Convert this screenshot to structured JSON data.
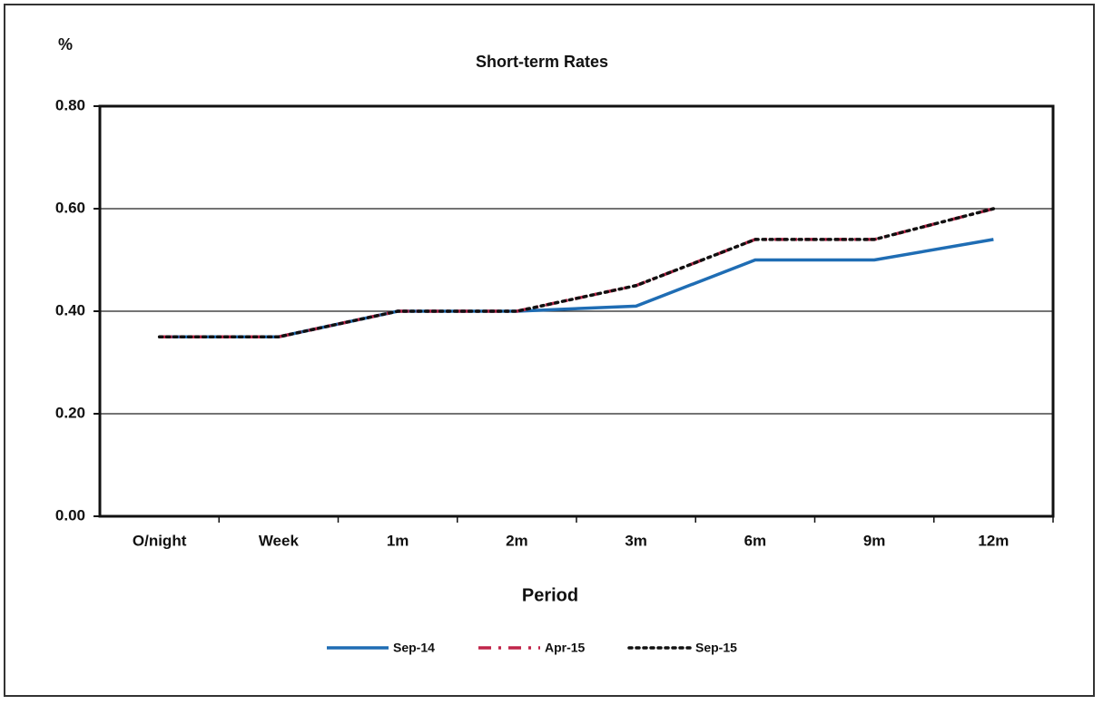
{
  "chart_data": {
    "type": "line",
    "title": "Short-term Rates",
    "y_label": "%",
    "x_label": "Period",
    "categories": [
      "O/night",
      "Week",
      "1m",
      "2m",
      "3m",
      "6m",
      "9m",
      "12m"
    ],
    "series": [
      {
        "name": "Sep-14",
        "color": "#1f6db4",
        "style": "solid",
        "values": [
          0.35,
          0.35,
          0.4,
          0.4,
          0.41,
          0.5,
          0.5,
          0.54
        ]
      },
      {
        "name": "Apr-15",
        "color": "#c0254a",
        "style": "dashdot",
        "values": [
          0.35,
          0.35,
          0.4,
          0.4,
          0.45,
          0.54,
          0.54,
          0.6
        ]
      },
      {
        "name": "Sep-15",
        "color": "#111111",
        "style": "dotted",
        "values": [
          0.35,
          0.35,
          0.4,
          0.4,
          0.45,
          0.54,
          0.54,
          0.6
        ]
      }
    ],
    "ylim": [
      0,
      0.8
    ],
    "yticks": [
      {
        "value": 0,
        "label": "0.00"
      },
      {
        "value": 0.2,
        "label": "0.20"
      },
      {
        "value": 0.4,
        "label": "0.40"
      },
      {
        "value": 0.6,
        "label": "0.60"
      },
      {
        "value": 0.8,
        "label": "0.80"
      }
    ],
    "grid": true,
    "legend": "bottom"
  }
}
